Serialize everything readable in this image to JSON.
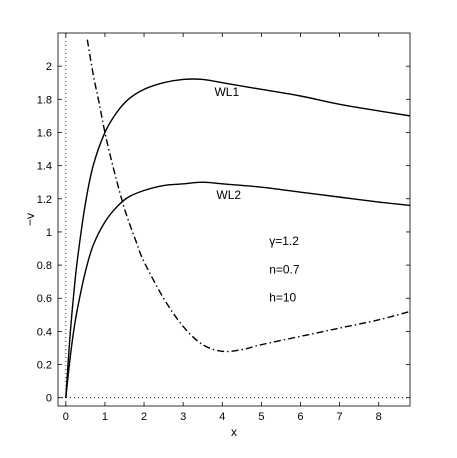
{
  "chart_data": {
    "type": "line",
    "title": "",
    "xlabel": "x",
    "ylabel": "−v",
    "xlim": [
      -0.2,
      8.8
    ],
    "ylim": [
      -0.05,
      2.2
    ],
    "grid": false,
    "x_ticks": [
      0,
      1,
      2,
      3,
      4,
      5,
      6,
      7,
      8
    ],
    "y_ticks": [
      0,
      0.2,
      0.4,
      0.6,
      0.8,
      1,
      1.2,
      1.4,
      1.6,
      1.8,
      2
    ],
    "x_tick_labels": [
      "0",
      "1",
      "2",
      "3",
      "4",
      "5",
      "6",
      "7",
      "8"
    ],
    "y_tick_labels": [
      "0",
      "0.2",
      "0.4",
      "0.6",
      "0.8",
      "1",
      "1.2",
      "1.4",
      "1.6",
      "1.8",
      "2"
    ],
    "reference_lines": [
      {
        "orientation": "vertical",
        "x": 0,
        "style": "dotted"
      },
      {
        "orientation": "horizontal",
        "y": 0,
        "style": "dotted"
      }
    ],
    "series": [
      {
        "name": "WL1",
        "style": "solid",
        "color": "#000000",
        "x": [
          0,
          0.1,
          0.2,
          0.3,
          0.5,
          0.7,
          1.0,
          1.3,
          1.6,
          2.0,
          2.5,
          3.0,
          3.5,
          4.0,
          5.0,
          6.0,
          7.0,
          8.0,
          8.8
        ],
        "y": [
          0,
          0.35,
          0.62,
          0.84,
          1.17,
          1.4,
          1.6,
          1.72,
          1.8,
          1.86,
          1.9,
          1.92,
          1.92,
          1.9,
          1.86,
          1.82,
          1.77,
          1.73,
          1.7
        ]
      },
      {
        "name": "WL2",
        "style": "solid",
        "color": "#000000",
        "x": [
          0,
          0.1,
          0.2,
          0.3,
          0.5,
          0.7,
          1.0,
          1.3,
          1.6,
          2.0,
          2.5,
          3.0,
          3.5,
          4.0,
          5.0,
          6.0,
          7.0,
          8.0,
          8.8
        ],
        "y": [
          0,
          0.22,
          0.4,
          0.54,
          0.76,
          0.92,
          1.06,
          1.15,
          1.21,
          1.25,
          1.28,
          1.29,
          1.3,
          1.29,
          1.27,
          1.24,
          1.21,
          1.18,
          1.16
        ]
      },
      {
        "name": "",
        "style": "dashdot",
        "color": "#000000",
        "x": [
          0.55,
          0.7,
          0.85,
          1.0,
          1.2,
          1.5,
          1.8,
          2.0,
          2.5,
          3.0,
          3.5,
          4.0,
          4.5,
          5.0,
          6.0,
          7.0,
          8.0,
          8.8
        ],
        "y": [
          2.16,
          1.95,
          1.78,
          1.6,
          1.4,
          1.14,
          0.94,
          0.82,
          0.6,
          0.43,
          0.32,
          0.28,
          0.29,
          0.32,
          0.37,
          0.42,
          0.47,
          0.52
        ]
      }
    ],
    "annotations": [
      {
        "text": "WL1",
        "x": 3.8,
        "y": 1.82
      },
      {
        "text": "WL2",
        "x": 3.85,
        "y": 1.2
      },
      {
        "text": "γ=1.2",
        "x": 5.2,
        "y": 0.92
      },
      {
        "text": "n=0.7",
        "x": 5.2,
        "y": 0.75
      },
      {
        "text": "h=10",
        "x": 5.2,
        "y": 0.58
      }
    ]
  }
}
